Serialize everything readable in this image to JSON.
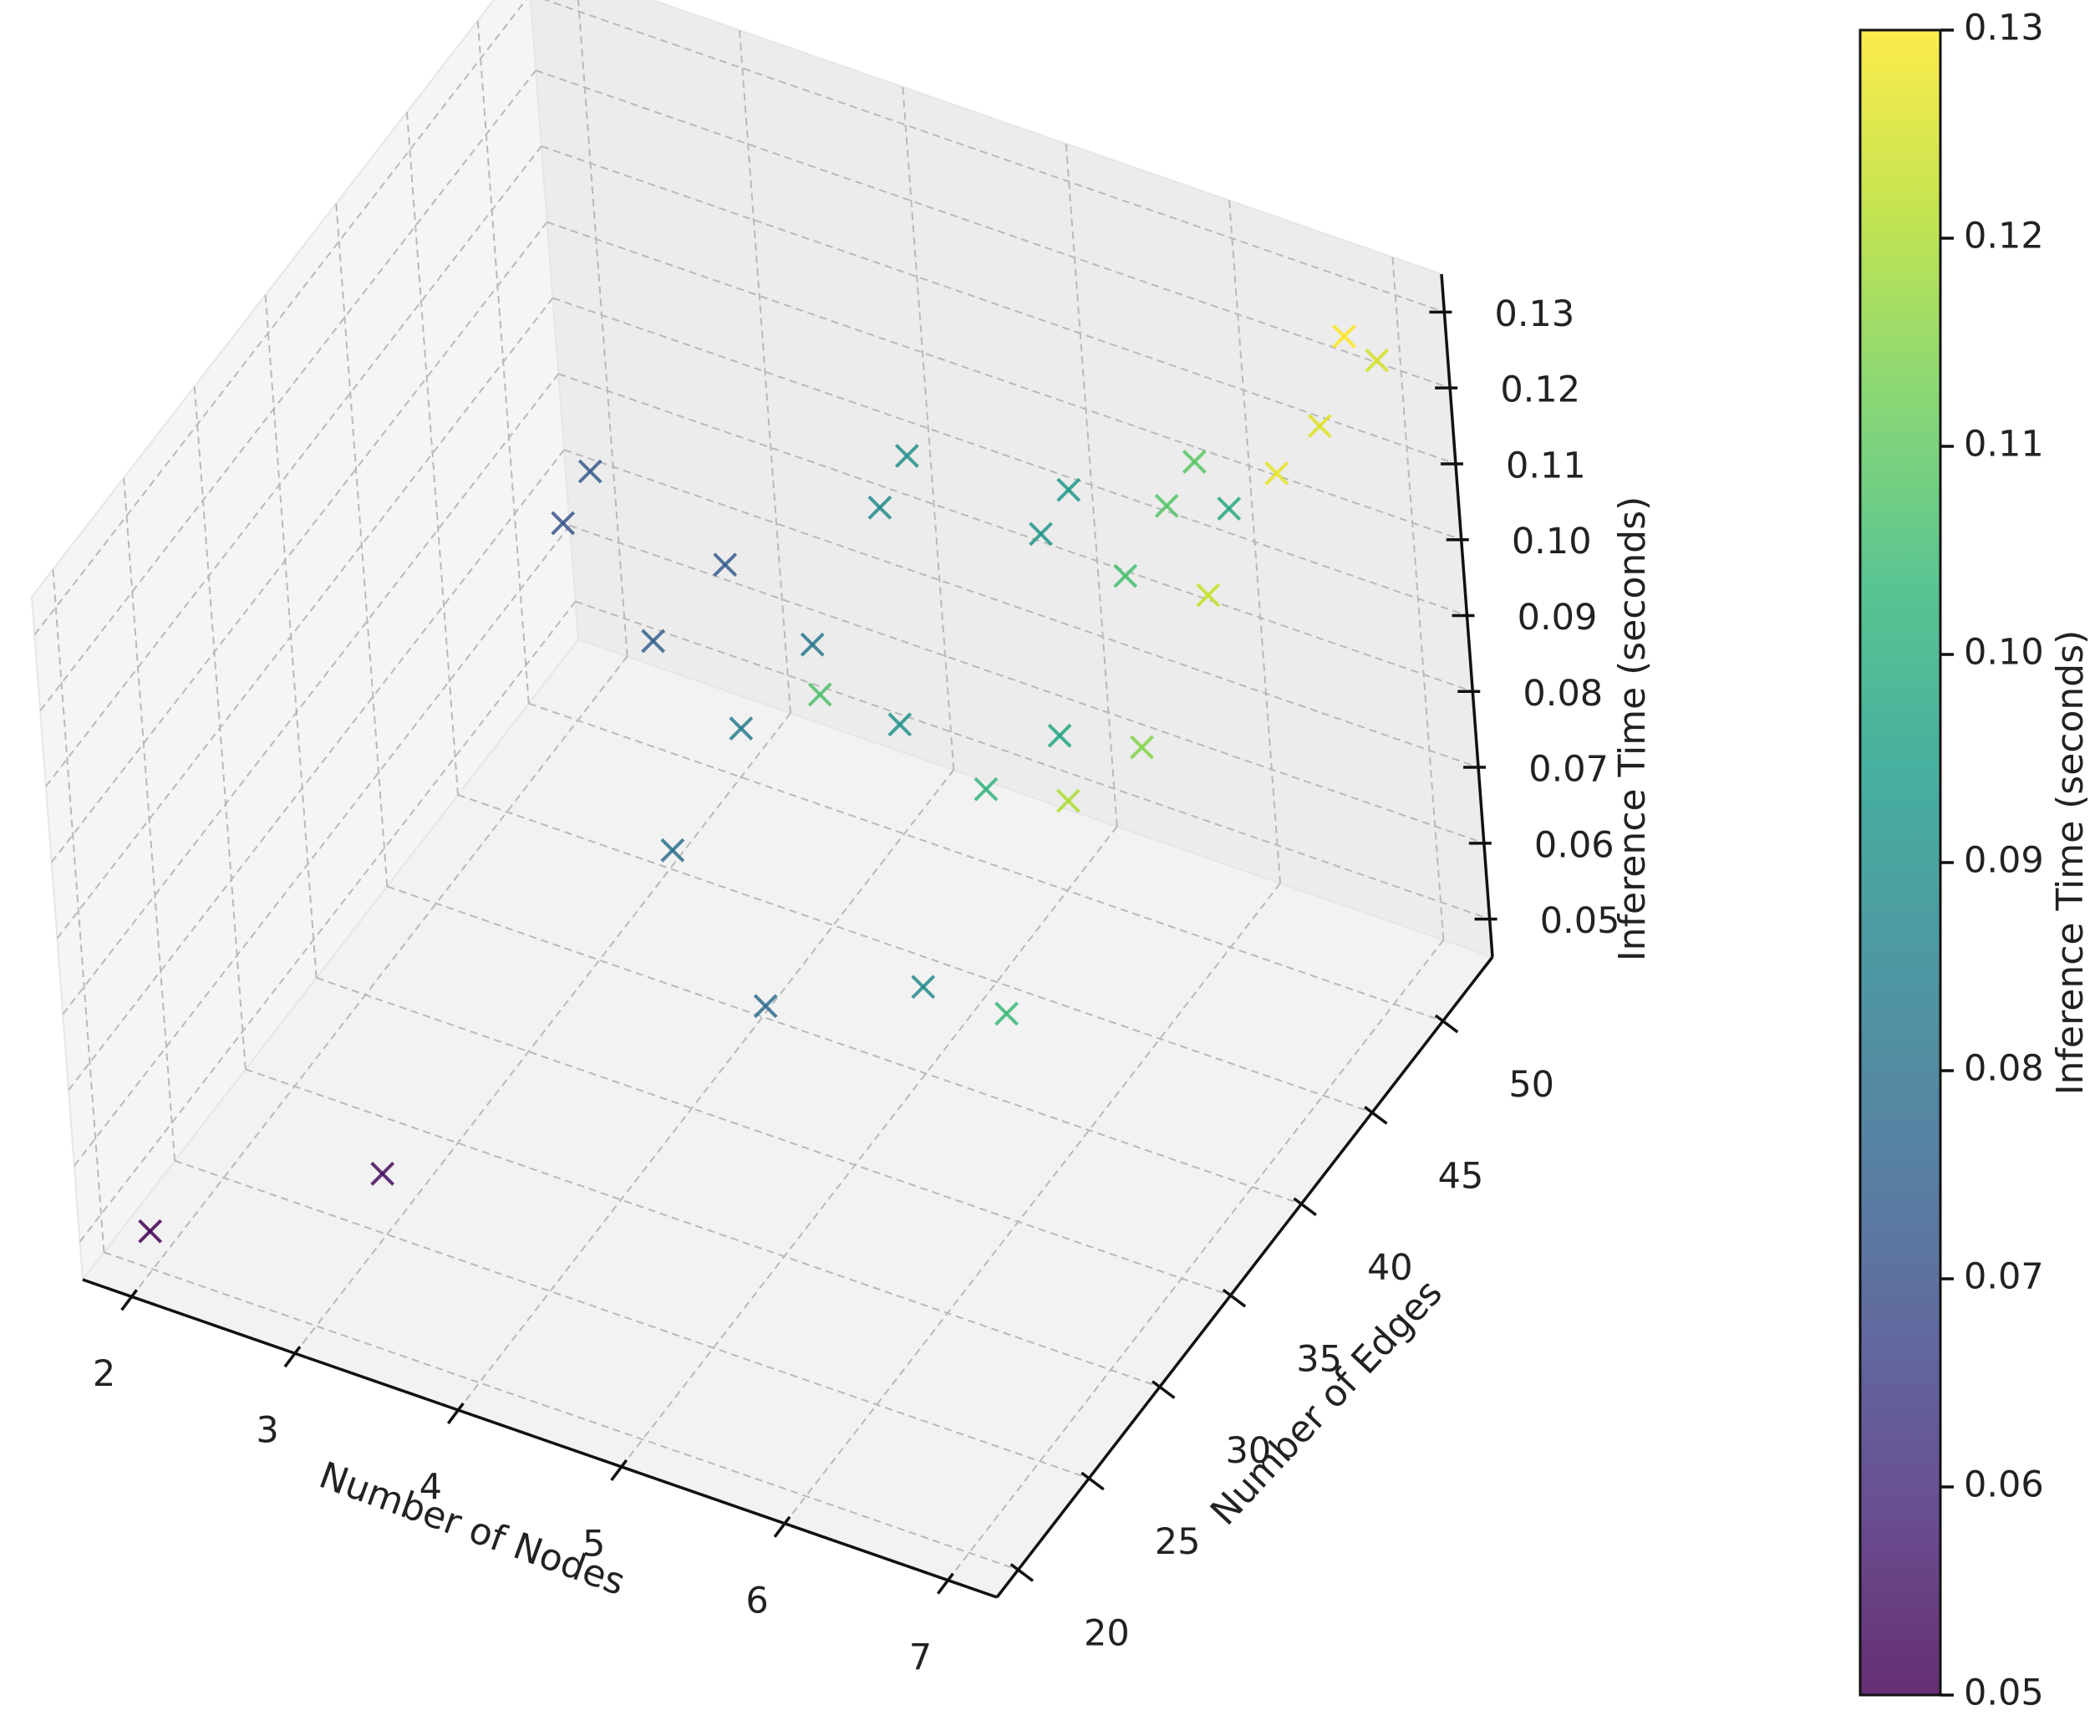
{
  "chart_data": {
    "type": "scatter",
    "projection": "3d",
    "marker": "x",
    "colormap": "viridis",
    "xlabel": "Number of Nodes",
    "ylabel": "Number of Edges",
    "zlabel": "Inference Time (seconds)",
    "xlim": [
      1.7,
      7.3
    ],
    "ylim": [
      18.5,
      53.5
    ],
    "zlim": [
      0.045,
      0.135
    ],
    "xticks": [
      "2",
      "3",
      "4",
      "5",
      "6",
      "7"
    ],
    "yticks": [
      "20",
      "25",
      "30",
      "35",
      "40",
      "45",
      "50"
    ],
    "zticks": [
      "0.05",
      "0.06",
      "0.07",
      "0.08",
      "0.09",
      "0.10",
      "0.11",
      "0.12",
      "0.13"
    ],
    "colorbar": {
      "label": "Inference Time (seconds)",
      "range": [
        0.05,
        0.13
      ],
      "ticks": [
        "0.05",
        "0.06",
        "0.07",
        "0.08",
        "0.09",
        "0.10",
        "0.11",
        "0.12",
        "0.13"
      ],
      "colors": [
        "#440154",
        "#482878",
        "#3e4a89",
        "#31688e",
        "#26828e",
        "#1f9e89",
        "#35b779",
        "#6ece58",
        "#b5de2b",
        "#fde725"
      ]
    },
    "points": [
      {
        "x": 2,
        "y": 20,
        "z": 0.05
      },
      {
        "x": 3,
        "y": 25,
        "z": 0.053
      },
      {
        "x": 2,
        "y": 50,
        "z": 0.071
      },
      {
        "x": 2,
        "y": 52,
        "z": 0.073
      },
      {
        "x": 3,
        "y": 45,
        "z": 0.075
      },
      {
        "x": 3,
        "y": 50,
        "z": 0.073
      },
      {
        "x": 4,
        "y": 35,
        "z": 0.079
      },
      {
        "x": 4,
        "y": 45,
        "z": 0.082
      },
      {
        "x": 4,
        "y": 40,
        "z": 0.083
      },
      {
        "x": 4,
        "y": 50,
        "z": 0.088
      },
      {
        "x": 5,
        "y": 30,
        "z": 0.078
      },
      {
        "x": 5,
        "y": 40,
        "z": 0.091
      },
      {
        "x": 4,
        "y": 52,
        "z": 0.09
      },
      {
        "x": 5,
        "y": 50,
        "z": 0.092
      },
      {
        "x": 5,
        "y": 52,
        "z": 0.093
      },
      {
        "x": 6,
        "y": 30,
        "z": 0.088
      },
      {
        "x": 6,
        "y": 35,
        "z": 0.102
      },
      {
        "x": 6,
        "y": 40,
        "z": 0.097
      },
      {
        "x": 5,
        "y": 35,
        "z": 0.107
      },
      {
        "x": 6,
        "y": 45,
        "z": 0.106
      },
      {
        "x": 6,
        "y": 48,
        "z": 0.108
      },
      {
        "x": 6,
        "y": 50,
        "z": 0.109
      },
      {
        "x": 6,
        "y": 52,
        "z": 0.098
      },
      {
        "x": 7,
        "y": 35,
        "z": 0.115
      },
      {
        "x": 7,
        "y": 40,
        "z": 0.123
      },
      {
        "x": 7,
        "y": 45,
        "z": 0.127
      },
      {
        "x": 7,
        "y": 48,
        "z": 0.126
      },
      {
        "x": 7,
        "y": 50,
        "z": 0.133
      },
      {
        "x": 7,
        "y": 52,
        "z": 0.125
      },
      {
        "x": 7,
        "y": 30,
        "z": 0.12
      },
      {
        "x": 7,
        "y": 25,
        "z": 0.104
      }
    ]
  }
}
